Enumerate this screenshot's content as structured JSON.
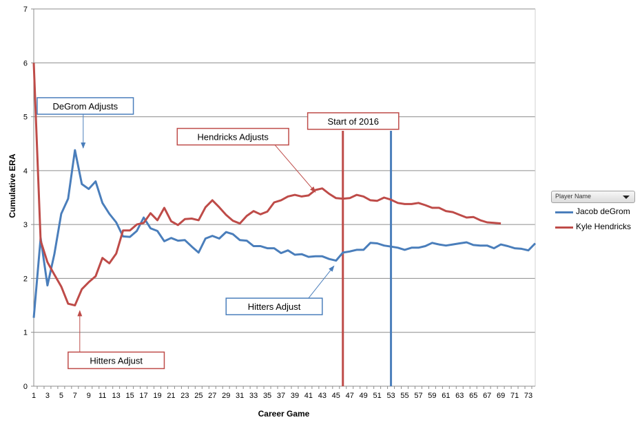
{
  "chart_data": {
    "type": "line",
    "title": "",
    "xlabel": "Career Game",
    "ylabel": "Cumulative ERA",
    "xlim": [
      1,
      74
    ],
    "ylim": [
      0,
      7
    ],
    "x_ticks": [
      1,
      3,
      5,
      7,
      9,
      11,
      13,
      15,
      17,
      19,
      21,
      23,
      25,
      27,
      29,
      31,
      33,
      35,
      37,
      39,
      41,
      43,
      45,
      47,
      49,
      51,
      53,
      55,
      57,
      59,
      61,
      63,
      65,
      67,
      69,
      71,
      73
    ],
    "y_ticks": [
      0,
      1,
      2,
      3,
      4,
      5,
      6,
      7
    ],
    "grid": "horizontal",
    "legend": {
      "position": "right",
      "field_label": "Player Name"
    },
    "series": [
      {
        "name": "Jacob deGrom",
        "color": "#4a7ebb",
        "values": [
          1.27,
          2.75,
          1.87,
          2.45,
          3.2,
          3.48,
          4.38,
          3.75,
          3.66,
          3.8,
          3.4,
          3.2,
          3.04,
          2.78,
          2.77,
          2.88,
          3.13,
          2.93,
          2.88,
          2.69,
          2.75,
          2.7,
          2.71,
          2.59,
          2.48,
          2.74,
          2.79,
          2.74,
          2.86,
          2.82,
          2.71,
          2.7,
          2.6,
          2.6,
          2.56,
          2.56,
          2.47,
          2.52,
          2.44,
          2.45,
          2.4,
          2.41,
          2.41,
          2.36,
          2.33,
          2.48,
          2.5,
          2.53,
          2.53,
          2.66,
          2.65,
          2.61,
          2.59,
          2.57,
          2.53,
          2.57,
          2.57,
          2.6,
          2.66,
          2.63,
          2.61,
          2.63,
          2.65,
          2.67,
          2.62,
          2.61,
          2.61,
          2.56,
          2.63,
          2.6,
          2.56,
          2.55,
          2.52,
          2.65
        ]
      },
      {
        "name": "Kyle Hendricks",
        "color": "#be4b48",
        "values": [
          6.0,
          2.7,
          2.3,
          2.07,
          1.85,
          1.53,
          1.5,
          1.8,
          1.93,
          2.04,
          2.38,
          2.28,
          2.46,
          2.89,
          2.89,
          3.0,
          3.03,
          3.21,
          3.08,
          3.31,
          3.06,
          2.99,
          3.1,
          3.11,
          3.08,
          3.32,
          3.45,
          3.32,
          3.18,
          3.07,
          3.02,
          3.16,
          3.25,
          3.19,
          3.24,
          3.41,
          3.45,
          3.52,
          3.55,
          3.52,
          3.54,
          3.64,
          3.67,
          3.57,
          3.49,
          3.48,
          3.49,
          3.55,
          3.52,
          3.45,
          3.44,
          3.5,
          3.46,
          3.4,
          3.38,
          3.38,
          3.4,
          3.36,
          3.31,
          3.31,
          3.25,
          3.23,
          3.18,
          3.13,
          3.14,
          3.08,
          3.04,
          3.03,
          3.02
        ]
      }
    ],
    "vertical_markers": [
      {
        "x": 46,
        "color": "#be4b48"
      },
      {
        "x": 53,
        "color": "#4a7ebb"
      }
    ],
    "annotations": [
      {
        "text": "DeGrom Adjusts",
        "color": "#4a7ebb",
        "box_at": [
          8.5,
          5.2
        ],
        "arrow_to": [
          8.2,
          4.42
        ]
      },
      {
        "text": "Start of 2016",
        "color": "#be4b48",
        "box_at": [
          47.5,
          4.92
        ],
        "arrow_to": null
      },
      {
        "text": "Hendricks Adjusts",
        "color": "#be4b48",
        "box_at": [
          30.0,
          4.63
        ],
        "arrow_to": [
          42.0,
          3.6
        ]
      },
      {
        "text": "Hitters Adjust",
        "color": "#4a7ebb",
        "box_at": [
          36.0,
          1.48
        ],
        "arrow_to": [
          44.7,
          2.23
        ]
      },
      {
        "text": "Hitters Adjust",
        "color": "#be4b48",
        "box_at": [
          13.0,
          0.48
        ],
        "arrow_to": [
          7.7,
          1.4
        ]
      }
    ]
  }
}
